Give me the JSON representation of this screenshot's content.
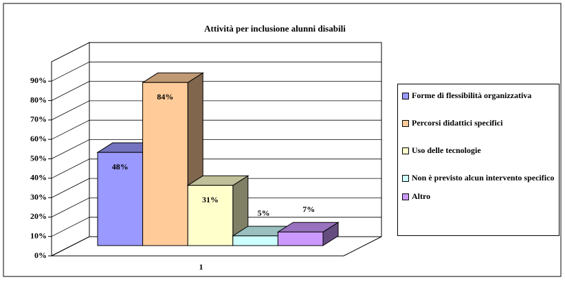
{
  "chart_data": {
    "type": "bar3d",
    "title": "Attività per inclusione alunni disabili",
    "categories": [
      "1"
    ],
    "series": [
      {
        "name": "Forme di flessibilità organizzativa",
        "color": "#9999ff",
        "values": [
          48
        ],
        "value_labels": [
          "48%"
        ]
      },
      {
        "name": "Percorsi didattici specifici",
        "color": "#ffcc99",
        "values": [
          84
        ],
        "value_labels": [
          "84%"
        ]
      },
      {
        "name": "Uso delle tecnologie",
        "color": "#ffffcc",
        "values": [
          31
        ],
        "value_labels": [
          "31%"
        ]
      },
      {
        "name": "Non è previsto alcun intervento specifico",
        "color": "#ccffff",
        "values": [
          5
        ],
        "value_labels": [
          "5%"
        ]
      },
      {
        "name": "Altro",
        "color": "#cc99ff",
        "values": [
          7
        ],
        "value_labels": [
          "7%"
        ]
      }
    ],
    "ylim": [
      0,
      100
    ],
    "yticks": [
      {
        "value": 0,
        "label": "0%"
      },
      {
        "value": 10,
        "label": "10%"
      },
      {
        "value": 20,
        "label": "20%"
      },
      {
        "value": 30,
        "label": "30%"
      },
      {
        "value": 40,
        "label": "40%"
      },
      {
        "value": 50,
        "label": "50%"
      },
      {
        "value": 60,
        "label": "60%"
      },
      {
        "value": 70,
        "label": "70%"
      },
      {
        "value": 80,
        "label": "80%"
      },
      {
        "value": 90,
        "label": "90%"
      }
    ],
    "grid": true,
    "legend": "right"
  }
}
